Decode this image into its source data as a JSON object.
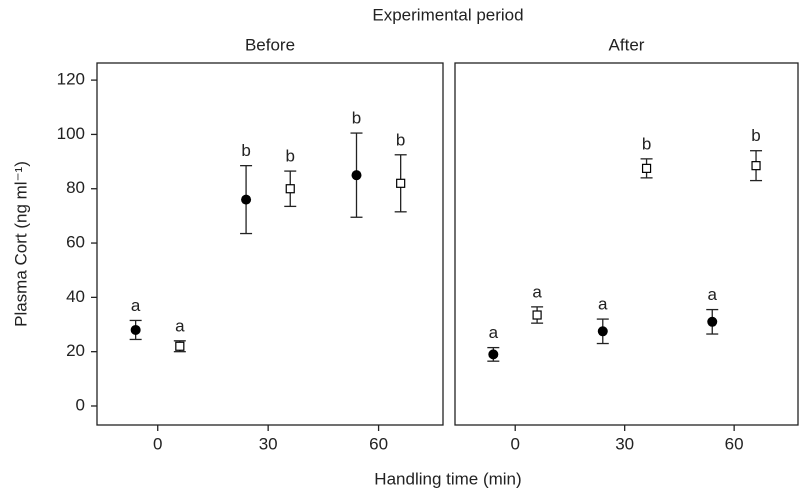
{
  "figure": {
    "title": "Experimental period",
    "x_label": "Handling time (min)",
    "y_label": "Plasma Cort (ng ml⁻¹)"
  },
  "chart_data": [
    {
      "type": "scatter",
      "title": "Before",
      "xlim": [
        -16.5,
        77.5
      ],
      "ylim": [
        -7,
        126.3
      ],
      "xticks": [
        0,
        30,
        60
      ],
      "yticks": [
        0,
        20,
        40,
        60,
        80,
        100,
        120
      ],
      "series": [
        {
          "marker": "circle",
          "color": "#000000",
          "x": [
            -6,
            24,
            54
          ],
          "values": [
            28,
            76,
            85
          ],
          "errors": [
            3.5,
            12.5,
            15.5
          ],
          "labels": [
            "a",
            "b",
            "b"
          ]
        },
        {
          "marker": "square",
          "color": "#000000",
          "x": [
            6,
            36,
            66
          ],
          "values": [
            22,
            80,
            82
          ],
          "errors": [
            2,
            6.5,
            10.5
          ],
          "labels": [
            "a",
            "b",
            "b"
          ]
        }
      ]
    },
    {
      "type": "scatter",
      "title": "After",
      "xlim": [
        -16.5,
        77.5
      ],
      "ylim": [
        -7,
        126.3
      ],
      "xticks": [
        0,
        30,
        60
      ],
      "series": [
        {
          "marker": "circle",
          "color": "#000000",
          "x": [
            -6,
            24,
            54
          ],
          "values": [
            19,
            27.5,
            31
          ],
          "errors": [
            2.5,
            4.5,
            4.5
          ],
          "labels": [
            "a",
            "a",
            "a"
          ]
        },
        {
          "marker": "square",
          "color": "#000000",
          "x": [
            6,
            36,
            66
          ],
          "values": [
            33.5,
            87.5,
            88.5
          ],
          "errors": [
            3,
            3.5,
            5.5
          ],
          "labels": [
            "a",
            "b",
            "b"
          ]
        }
      ]
    }
  ]
}
